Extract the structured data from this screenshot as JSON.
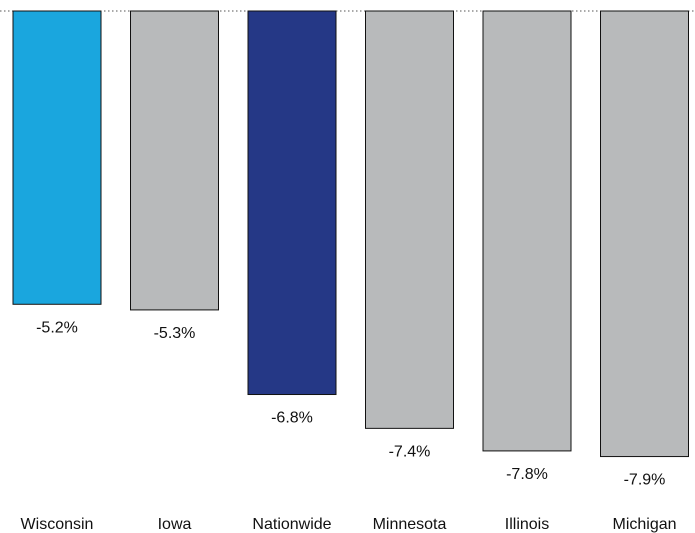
{
  "chart_data": {
    "type": "bar",
    "categories": [
      "Wisconsin",
      "Iowa",
      "Nationwide",
      "Minnesota",
      "Illinois",
      "Michigan"
    ],
    "values": [
      -5.2,
      -5.3,
      -6.8,
      -7.4,
      -7.8,
      -7.9
    ],
    "value_labels": [
      "-5.2%",
      "-5.3%",
      "-6.8%",
      "-7.4%",
      "-7.8%",
      "-7.9%"
    ],
    "title": "",
    "xlabel": "",
    "ylabel": "",
    "ylim": [
      -7.9,
      0
    ],
    "grid": false,
    "baseline": "dotted line at 0",
    "colors": [
      "#1aa6de",
      "#b8babb",
      "#253886",
      "#b8babb",
      "#b8babb",
      "#b8babb"
    ],
    "bar_stroke": "#111111"
  }
}
